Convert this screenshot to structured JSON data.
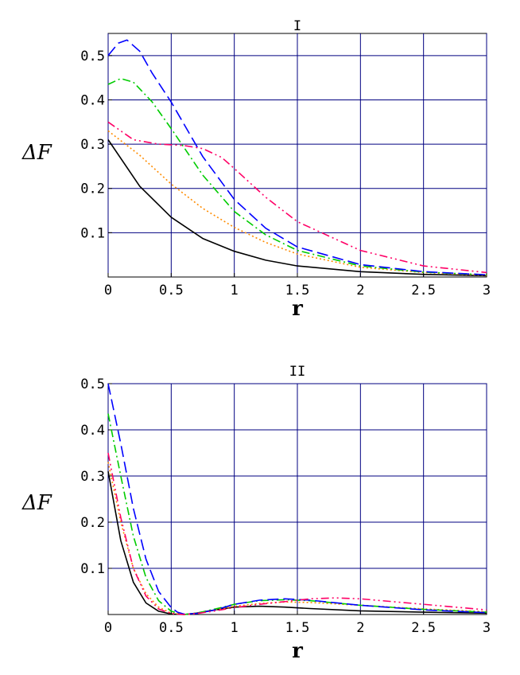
{
  "chart_data": [
    {
      "type": "line",
      "title": "I",
      "xlabel": "r",
      "ylabel": "ΔF",
      "xlim": [
        0,
        3
      ],
      "ylim": [
        0,
        0.55
      ],
      "grid": true,
      "x_ticks": [
        "0",
        "0.5",
        "1",
        "1.5",
        "2",
        "2.5",
        "3"
      ],
      "y_ticks": [
        "0.1",
        "0.2",
        "0.3",
        "0.4",
        "0.5"
      ],
      "series": [
        {
          "style": "solid",
          "color": "#000000",
          "x": [
            0,
            0.25,
            0.5,
            0.75,
            1.0,
            1.25,
            1.5,
            2.0,
            2.5,
            3.0
          ],
          "y": [
            0.31,
            0.205,
            0.135,
            0.087,
            0.058,
            0.038,
            0.025,
            0.012,
            0.006,
            0.003
          ]
        },
        {
          "style": "dotted",
          "color": "#ff8c00",
          "x": [
            0,
            0.25,
            0.5,
            0.75,
            1.0,
            1.25,
            1.5,
            2.0,
            2.5,
            3.0
          ],
          "y": [
            0.33,
            0.275,
            0.21,
            0.155,
            0.112,
            0.078,
            0.052,
            0.022,
            0.01,
            0.004
          ]
        },
        {
          "style": "dashdot",
          "color": "#00cc00",
          "x": [
            0,
            0.1,
            0.2,
            0.35,
            0.5,
            0.75,
            1.0,
            1.25,
            1.5,
            2.0,
            2.5,
            3.0
          ],
          "y": [
            0.435,
            0.448,
            0.44,
            0.395,
            0.335,
            0.23,
            0.148,
            0.095,
            0.06,
            0.025,
            0.011,
            0.005
          ]
        },
        {
          "style": "dashed",
          "color": "#0000ff",
          "x": [
            0,
            0.08,
            0.15,
            0.25,
            0.35,
            0.5,
            0.75,
            1.0,
            1.25,
            1.5,
            2.0,
            2.5,
            3.0
          ],
          "y": [
            0.5,
            0.528,
            0.535,
            0.51,
            0.46,
            0.395,
            0.272,
            0.175,
            0.11,
            0.068,
            0.028,
            0.012,
            0.005
          ]
        },
        {
          "style": "dashdotdot",
          "color": "#ff0066",
          "x": [
            0,
            0.2,
            0.4,
            0.6,
            0.75,
            0.9,
            1.0,
            1.25,
            1.5,
            2.0,
            2.5,
            3.0
          ],
          "y": [
            0.35,
            0.31,
            0.3,
            0.297,
            0.29,
            0.27,
            0.245,
            0.18,
            0.125,
            0.06,
            0.025,
            0.01
          ]
        }
      ]
    },
    {
      "type": "line",
      "title": "II",
      "xlabel": "r",
      "ylabel": "ΔF",
      "xlim": [
        0,
        3
      ],
      "ylim": [
        0,
        0.5
      ],
      "grid": true,
      "x_ticks": [
        "0",
        "0.5",
        "1",
        "1.5",
        "2",
        "2.5",
        "3"
      ],
      "y_ticks": [
        "0.1",
        "0.2",
        "0.3",
        "0.4",
        "0.5"
      ],
      "series": [
        {
          "style": "solid",
          "color": "#000000",
          "x": [
            0,
            0.1,
            0.2,
            0.3,
            0.4,
            0.5,
            0.6,
            0.7,
            0.8,
            1.0,
            1.2,
            1.4,
            1.6,
            2.0,
            2.5,
            3.0
          ],
          "y": [
            0.31,
            0.16,
            0.07,
            0.025,
            0.007,
            0.001,
            0.0,
            0.003,
            0.008,
            0.016,
            0.018,
            0.016,
            0.013,
            0.008,
            0.005,
            0.003
          ]
        },
        {
          "style": "dotted",
          "color": "#ff8c00",
          "x": [
            0,
            0.1,
            0.2,
            0.3,
            0.4,
            0.5,
            0.6,
            0.7,
            0.85,
            1.0,
            1.2,
            1.4,
            1.6,
            2.0,
            2.5,
            3.0
          ],
          "y": [
            0.33,
            0.2,
            0.1,
            0.045,
            0.016,
            0.003,
            0.0,
            0.002,
            0.01,
            0.018,
            0.024,
            0.027,
            0.026,
            0.02,
            0.012,
            0.006
          ]
        },
        {
          "style": "dashdot",
          "color": "#00cc00",
          "x": [
            0,
            0.1,
            0.2,
            0.3,
            0.4,
            0.5,
            0.6,
            0.7,
            0.85,
            1.0,
            1.2,
            1.4,
            1.6,
            2.0,
            2.5,
            3.0
          ],
          "y": [
            0.435,
            0.3,
            0.17,
            0.08,
            0.03,
            0.007,
            0.0,
            0.003,
            0.012,
            0.022,
            0.03,
            0.032,
            0.03,
            0.02,
            0.011,
            0.005
          ]
        },
        {
          "style": "dashed",
          "color": "#0000ff",
          "x": [
            0,
            0.1,
            0.2,
            0.3,
            0.4,
            0.5,
            0.55,
            0.6,
            0.7,
            0.85,
            1.0,
            1.2,
            1.4,
            1.6,
            2.0,
            2.5,
            3.0
          ],
          "y": [
            0.5,
            0.37,
            0.23,
            0.12,
            0.05,
            0.015,
            0.005,
            0.001,
            0.002,
            0.01,
            0.022,
            0.031,
            0.034,
            0.031,
            0.02,
            0.01,
            0.004
          ]
        },
        {
          "style": "dashdotdot",
          "color": "#ff0066",
          "x": [
            0,
            0.1,
            0.2,
            0.3,
            0.4,
            0.5,
            0.6,
            0.7,
            0.85,
            1.0,
            1.2,
            1.4,
            1.6,
            1.8,
            2.0,
            2.5,
            3.0
          ],
          "y": [
            0.35,
            0.21,
            0.1,
            0.04,
            0.012,
            0.002,
            0.0,
            0.002,
            0.008,
            0.015,
            0.022,
            0.028,
            0.034,
            0.036,
            0.034,
            0.022,
            0.01
          ]
        }
      ]
    }
  ]
}
